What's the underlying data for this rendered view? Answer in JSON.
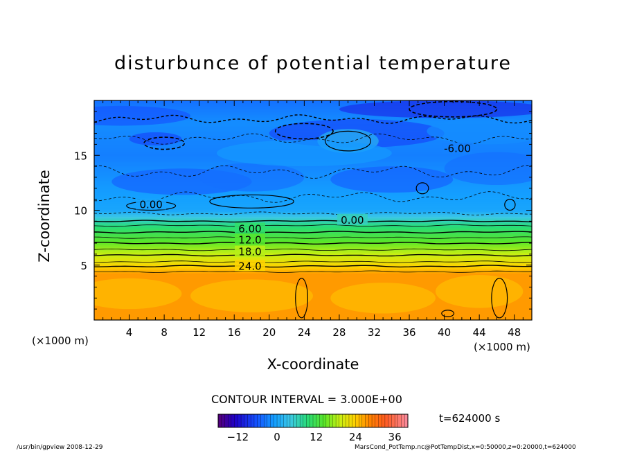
{
  "chart_data": {
    "type": "heatmap",
    "title": "disturbunce of potential temperature",
    "xlabel": "X-coordinate",
    "ylabel": "Z-coordinate",
    "x_unit_left": "(×1000 m)",
    "x_unit_right": "(×1000 m)",
    "xlim": [
      0,
      50
    ],
    "ylim": [
      0,
      20
    ],
    "x_ticks": [
      4,
      8,
      12,
      16,
      20,
      24,
      28,
      32,
      36,
      40,
      44,
      48
    ],
    "x_tick_labels": [
      "4",
      "8",
      "12",
      "16",
      "20",
      "24",
      "28",
      "32",
      "36",
      "40",
      "44",
      "48"
    ],
    "y_ticks": [
      5,
      10,
      15
    ],
    "y_tick_labels": [
      "5",
      "10",
      "15"
    ],
    "contour_interval_text": "CONTOUR INTERVAL = 3.000E+00",
    "contour_interval": 3.0,
    "contour_labels": [
      {
        "text": "-6.00",
        "x": 41.5,
        "z": 15.6
      },
      {
        "text": "0.00",
        "x": 6.5,
        "z": 10.5
      },
      {
        "text": "0.00",
        "x": 29.5,
        "z": 9.1
      },
      {
        "text": "6.00",
        "x": 17.8,
        "z": 8.3
      },
      {
        "text": "12.0",
        "x": 17.8,
        "z": 7.3
      },
      {
        "text": "18.0",
        "x": 17.8,
        "z": 6.2
      },
      {
        "text": "24.0",
        "x": 17.8,
        "z": 4.9
      }
    ],
    "vertical_profile": {
      "z": [
        0,
        4.2,
        4.8,
        5.5,
        6.3,
        7.0,
        7.8,
        8.6,
        9.4,
        10.0,
        12.0,
        15.0,
        18.0,
        20.0
      ],
      "value": [
        27,
        27,
        24,
        21,
        18,
        15,
        12,
        9,
        4,
        0,
        -1,
        -3,
        -2,
        -4
      ]
    },
    "colorbar": {
      "range": [
        -18,
        40
      ],
      "tick_values": [
        -12,
        0,
        12,
        24,
        36
      ],
      "tick_labels": [
        "−12",
        "0",
        "12",
        "24",
        "36"
      ],
      "colormap": "rainbow"
    },
    "time_label": "t=624000 s"
  },
  "footer": {
    "left": "/usr/bin/gpview   2008-12-29",
    "right": "MarsCond_PotTemp.nc@PotTempDist,x=0:50000,z=0:20000,t=624000"
  }
}
